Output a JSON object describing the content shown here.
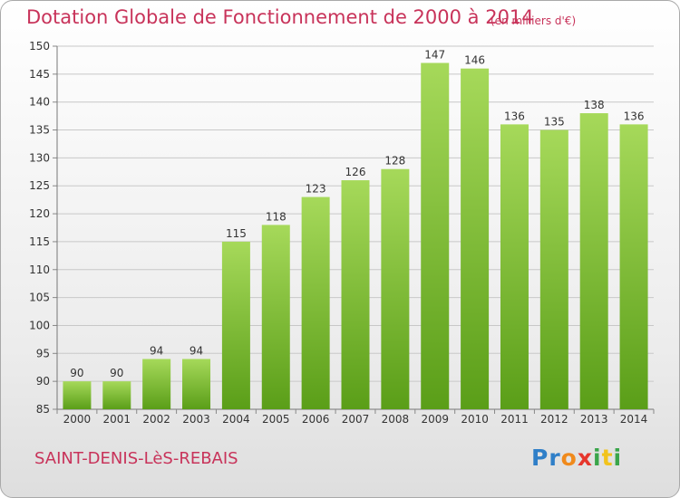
{
  "title": "Dotation Globale de Fonctionnement de 2000 à 2014",
  "subtitle": "(en milliers d'€)",
  "commune": "SAINT-DENIS-LèS-REBAIS",
  "logo": {
    "letters": [
      "P",
      "r",
      "o",
      "x",
      "i",
      "t",
      "i"
    ],
    "colors": [
      "#2f7fc8",
      "#2f7fc8",
      "#f08a1c",
      "#e6362c",
      "#3aa54a",
      "#f2c31c",
      "#3aa54a"
    ]
  },
  "colors": {
    "accent": "#c8335a",
    "bar_top": "#a6d95a",
    "bar_bottom": "#5a9e18",
    "grid": "#c8c8c8"
  },
  "chart_data": {
    "type": "bar",
    "categories": [
      "2000",
      "2001",
      "2002",
      "2003",
      "2004",
      "2005",
      "2006",
      "2007",
      "2008",
      "2009",
      "2010",
      "2011",
      "2012",
      "2013",
      "2014"
    ],
    "values": [
      90,
      90,
      94,
      94,
      115,
      118,
      123,
      126,
      128,
      147,
      146,
      136,
      135,
      138,
      136
    ],
    "ylim": [
      85,
      150
    ],
    "yticks": [
      85,
      90,
      95,
      100,
      105,
      110,
      115,
      120,
      125,
      130,
      135,
      140,
      145,
      150
    ],
    "grid": true,
    "data_labels": true
  }
}
